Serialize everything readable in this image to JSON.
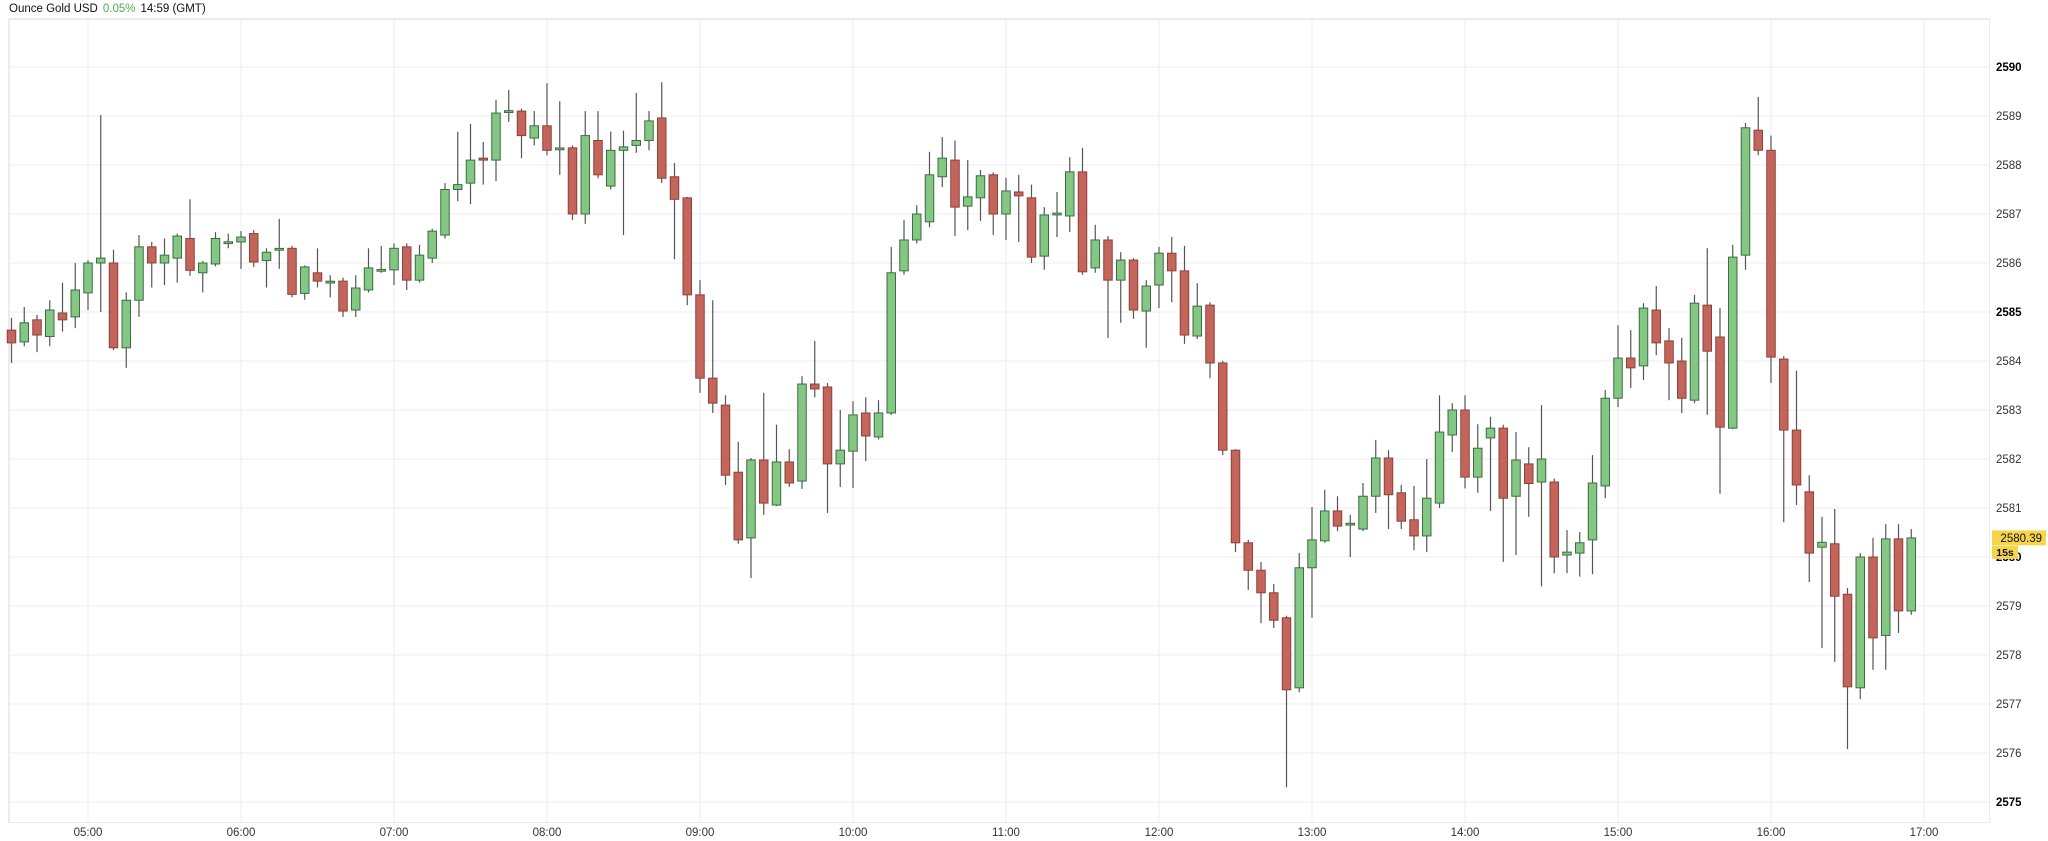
{
  "header": {
    "instrument": "Ounce Gold USD",
    "change_percent": "0.05%",
    "quote_time": "14:59 (GMT)"
  },
  "price_axis": {
    "min": 2575,
    "max": 2590,
    "step": 1,
    "bold_labels": [
      2575,
      2580,
      2585,
      2590
    ],
    "last_price_label": "2580.39",
    "countdown_label": "15s"
  },
  "time_axis": {
    "labels": [
      "05:00",
      "06:00",
      "07:00",
      "08:00",
      "09:00",
      "10:00",
      "11:00",
      "12:00",
      "13:00",
      "14:00",
      "15:00",
      "16:00",
      "17:00"
    ]
  },
  "colors": {
    "up_fill": "#84c784",
    "up_stroke": "#3c6e3f",
    "down_fill": "#c4655c",
    "down_stroke": "#8d4138",
    "wick": "#555555",
    "grid": "#ededed",
    "border": "#d9d9d9",
    "tick_text": "#333333",
    "tick_text_bold": "#000000",
    "pct_text": "#4caf50",
    "tag_bg": "#f6d54a",
    "tag_text": "#111111"
  },
  "chart_data": {
    "type": "candlestick",
    "interval": "5m",
    "title": "Ounce Gold USD",
    "ylim": [
      2575,
      2590
    ],
    "grid": true,
    "columns": [
      "time",
      "open",
      "high",
      "low",
      "close"
    ],
    "candles": [
      [
        "04:30",
        2584.63,
        2584.88,
        2583.96,
        2584.37
      ],
      [
        "04:35",
        2584.39,
        2585.1,
        2584.3,
        2584.78
      ],
      [
        "04:40",
        2584.84,
        2584.94,
        2584.18,
        2584.53
      ],
      [
        "04:45",
        2584.5,
        2585.24,
        2584.3,
        2585.04
      ],
      [
        "04:50",
        2584.98,
        2585.6,
        2584.6,
        2584.84
      ],
      [
        "04:55",
        2584.9,
        2586.0,
        2584.67,
        2585.45
      ],
      [
        "05:00",
        2585.39,
        2586.06,
        2585.04,
        2586.0
      ],
      [
        "05:05",
        2586.0,
        2589.02,
        2585.0,
        2586.1
      ],
      [
        "05:10",
        2586.0,
        2586.27,
        2584.22,
        2584.27
      ],
      [
        "05:15",
        2584.27,
        2585.4,
        2583.86,
        2585.24
      ],
      [
        "05:20",
        2585.24,
        2586.57,
        2584.9,
        2586.33
      ],
      [
        "05:25",
        2586.33,
        2586.43,
        2585.5,
        2586.0
      ],
      [
        "05:30",
        2586.0,
        2586.5,
        2585.55,
        2586.16
      ],
      [
        "05:35",
        2586.1,
        2586.6,
        2585.6,
        2586.55
      ],
      [
        "05:40",
        2586.5,
        2587.3,
        2585.74,
        2585.85
      ],
      [
        "05:45",
        2585.8,
        2586.04,
        2585.4,
        2586.0
      ],
      [
        "05:50",
        2585.98,
        2586.63,
        2585.93,
        2586.5
      ],
      [
        "05:55",
        2586.4,
        2586.6,
        2586.3,
        2586.43
      ],
      [
        "06:00",
        2586.43,
        2586.65,
        2585.88,
        2586.53
      ],
      [
        "06:05",
        2586.6,
        2586.67,
        2585.92,
        2586.02
      ],
      [
        "06:10",
        2586.05,
        2586.3,
        2585.5,
        2586.22
      ],
      [
        "06:15",
        2586.28,
        2586.9,
        2585.88,
        2586.28
      ],
      [
        "06:20",
        2586.3,
        2586.35,
        2585.3,
        2585.36
      ],
      [
        "06:25",
        2585.38,
        2585.95,
        2585.25,
        2585.92
      ],
      [
        "06:30",
        2585.8,
        2586.3,
        2585.5,
        2585.63
      ],
      [
        "06:35",
        2585.6,
        2585.75,
        2585.3,
        2585.62
      ],
      [
        "06:40",
        2585.63,
        2585.7,
        2584.9,
        2585.02
      ],
      [
        "06:45",
        2585.04,
        2585.75,
        2584.9,
        2585.49
      ],
      [
        "06:50",
        2585.45,
        2586.3,
        2585.4,
        2585.9
      ],
      [
        "06:55",
        2585.84,
        2586.35,
        2585.8,
        2585.86
      ],
      [
        "07:00",
        2585.86,
        2586.4,
        2585.55,
        2586.3
      ],
      [
        "07:05",
        2586.33,
        2586.4,
        2585.45,
        2585.65
      ],
      [
        "07:10",
        2585.65,
        2586.37,
        2585.6,
        2586.16
      ],
      [
        "07:15",
        2586.1,
        2586.7,
        2586.0,
        2586.65
      ],
      [
        "07:20",
        2586.57,
        2587.63,
        2586.5,
        2587.5
      ],
      [
        "07:25",
        2587.5,
        2588.68,
        2587.26,
        2587.6
      ],
      [
        "07:30",
        2587.63,
        2588.84,
        2587.2,
        2588.1
      ],
      [
        "07:35",
        2588.14,
        2588.47,
        2587.6,
        2588.1
      ],
      [
        "07:40",
        2588.1,
        2589.33,
        2587.67,
        2589.06
      ],
      [
        "07:45",
        2589.08,
        2589.53,
        2588.88,
        2589.1
      ],
      [
        "07:50",
        2589.1,
        2589.15,
        2588.14,
        2588.6
      ],
      [
        "07:55",
        2588.55,
        2589.1,
        2588.4,
        2588.8
      ],
      [
        "08:00",
        2588.8,
        2589.67,
        2588.2,
        2588.3
      ],
      [
        "08:05",
        2588.33,
        2589.3,
        2587.8,
        2588.33
      ],
      [
        "08:10",
        2588.35,
        2588.4,
        2586.88,
        2587.0
      ],
      [
        "08:15",
        2587.0,
        2589.1,
        2586.8,
        2588.6
      ],
      [
        "08:20",
        2588.5,
        2589.1,
        2587.73,
        2587.8
      ],
      [
        "08:25",
        2587.57,
        2588.68,
        2587.5,
        2588.3
      ],
      [
        "08:30",
        2588.3,
        2588.7,
        2586.57,
        2588.37
      ],
      [
        "08:35",
        2588.4,
        2589.47,
        2588.25,
        2588.5
      ],
      [
        "08:40",
        2588.5,
        2589.1,
        2588.3,
        2588.9
      ],
      [
        "08:45",
        2588.96,
        2589.69,
        2587.63,
        2587.73
      ],
      [
        "08:50",
        2587.76,
        2588.04,
        2586.08,
        2587.3
      ],
      [
        "08:55",
        2587.33,
        2587.35,
        2585.14,
        2585.35
      ],
      [
        "09:00",
        2585.35,
        2585.65,
        2583.35,
        2583.65
      ],
      [
        "09:05",
        2583.65,
        2585.24,
        2582.94,
        2583.14
      ],
      [
        "09:10",
        2583.1,
        2583.3,
        2581.47,
        2581.67
      ],
      [
        "09:15",
        2581.73,
        2582.35,
        2580.27,
        2580.35
      ],
      [
        "09:20",
        2580.39,
        2582.02,
        2579.57,
        2581.98
      ],
      [
        "09:25",
        2581.98,
        2583.35,
        2580.86,
        2581.1
      ],
      [
        "09:30",
        2581.06,
        2582.7,
        2581.04,
        2581.94
      ],
      [
        "09:35",
        2581.94,
        2582.2,
        2581.43,
        2581.51
      ],
      [
        "09:40",
        2581.55,
        2583.69,
        2581.39,
        2583.53
      ],
      [
        "09:45",
        2583.53,
        2584.41,
        2583.26,
        2583.43
      ],
      [
        "09:50",
        2583.47,
        2583.55,
        2580.9,
        2581.9
      ],
      [
        "09:55",
        2581.9,
        2583.0,
        2581.43,
        2582.18
      ],
      [
        "10:00",
        2582.16,
        2583.18,
        2581.41,
        2582.9
      ],
      [
        "10:05",
        2582.94,
        2583.26,
        2581.96,
        2582.47
      ],
      [
        "10:10",
        2582.45,
        2583.2,
        2582.4,
        2582.94
      ],
      [
        "10:15",
        2582.94,
        2586.33,
        2582.9,
        2585.8
      ],
      [
        "10:20",
        2585.84,
        2586.88,
        2585.76,
        2586.47
      ],
      [
        "10:25",
        2586.47,
        2587.18,
        2586.4,
        2587.0
      ],
      [
        "10:30",
        2586.84,
        2588.27,
        2586.73,
        2587.8
      ],
      [
        "10:35",
        2587.76,
        2588.57,
        2587.55,
        2588.14
      ],
      [
        "10:40",
        2588.1,
        2588.5,
        2586.55,
        2587.14
      ],
      [
        "10:45",
        2587.16,
        2588.1,
        2586.67,
        2587.35
      ],
      [
        "10:50",
        2587.33,
        2587.9,
        2586.86,
        2587.78
      ],
      [
        "10:55",
        2587.8,
        2587.85,
        2586.57,
        2587.0
      ],
      [
        "11:00",
        2587.0,
        2587.74,
        2586.47,
        2587.47
      ],
      [
        "11:05",
        2587.45,
        2587.8,
        2586.43,
        2587.37
      ],
      [
        "11:10",
        2587.33,
        2587.6,
        2586.0,
        2586.12
      ],
      [
        "11:15",
        2586.14,
        2587.14,
        2585.86,
        2586.98
      ],
      [
        "11:20",
        2587.0,
        2587.45,
        2586.53,
        2587.0
      ],
      [
        "11:25",
        2586.96,
        2588.16,
        2586.63,
        2587.86
      ],
      [
        "11:30",
        2587.86,
        2588.35,
        2585.76,
        2585.82
      ],
      [
        "11:35",
        2585.9,
        2586.78,
        2585.8,
        2586.47
      ],
      [
        "11:40",
        2586.47,
        2586.55,
        2584.47,
        2585.65
      ],
      [
        "11:45",
        2585.65,
        2586.22,
        2584.78,
        2586.06
      ],
      [
        "11:50",
        2586.06,
        2586.1,
        2584.86,
        2585.04
      ],
      [
        "11:55",
        2585.02,
        2585.65,
        2584.27,
        2585.53
      ],
      [
        "12:00",
        2585.55,
        2586.33,
        2585.08,
        2586.2
      ],
      [
        "12:05",
        2586.2,
        2586.53,
        2585.2,
        2585.84
      ],
      [
        "12:10",
        2585.84,
        2586.35,
        2584.35,
        2584.53
      ],
      [
        "12:15",
        2584.51,
        2585.59,
        2584.45,
        2585.12
      ],
      [
        "12:20",
        2585.14,
        2585.2,
        2583.65,
        2583.96
      ],
      [
        "12:25",
        2583.96,
        2584.0,
        2582.08,
        2582.18
      ],
      [
        "12:30",
        2582.18,
        2582.2,
        2580.1,
        2580.29
      ],
      [
        "12:35",
        2580.29,
        2580.35,
        2579.33,
        2579.73
      ],
      [
        "12:40",
        2579.73,
        2579.9,
        2578.65,
        2579.27
      ],
      [
        "12:45",
        2579.27,
        2579.45,
        2578.55,
        2578.71
      ],
      [
        "12:50",
        2578.76,
        2578.8,
        2575.3,
        2577.29
      ],
      [
        "12:55",
        2577.33,
        2580.08,
        2577.24,
        2579.78
      ],
      [
        "13:00",
        2579.78,
        2581.02,
        2578.76,
        2580.35
      ],
      [
        "13:05",
        2580.33,
        2581.37,
        2580.29,
        2580.94
      ],
      [
        "13:10",
        2580.94,
        2581.24,
        2580.53,
        2580.63
      ],
      [
        "13:15",
        2580.67,
        2580.86,
        2580.0,
        2580.67
      ],
      [
        "13:20",
        2580.57,
        2581.51,
        2580.53,
        2581.24
      ],
      [
        "13:25",
        2581.24,
        2582.39,
        2580.9,
        2582.02
      ],
      [
        "13:30",
        2582.02,
        2582.18,
        2580.57,
        2581.27
      ],
      [
        "13:35",
        2581.31,
        2581.47,
        2580.57,
        2580.73
      ],
      [
        "13:40",
        2580.76,
        2581.45,
        2580.14,
        2580.43
      ],
      [
        "13:45",
        2580.43,
        2582.0,
        2580.1,
        2581.2
      ],
      [
        "13:50",
        2581.1,
        2583.3,
        2581.0,
        2582.55
      ],
      [
        "13:55",
        2582.49,
        2583.14,
        2582.14,
        2583.0
      ],
      [
        "14:00",
        2583.0,
        2583.3,
        2581.4,
        2581.63
      ],
      [
        "14:05",
        2581.63,
        2582.71,
        2581.31,
        2582.22
      ],
      [
        "14:10",
        2582.43,
        2582.86,
        2580.94,
        2582.63
      ],
      [
        "14:15",
        2582.63,
        2582.7,
        2579.9,
        2581.2
      ],
      [
        "14:20",
        2581.24,
        2582.55,
        2580.04,
        2581.98
      ],
      [
        "14:25",
        2581.9,
        2582.24,
        2580.82,
        2581.5
      ],
      [
        "14:30",
        2581.53,
        2583.1,
        2579.4,
        2582.0
      ],
      [
        "14:35",
        2581.53,
        2581.6,
        2579.67,
        2580.0
      ],
      [
        "14:40",
        2580.04,
        2580.55,
        2579.67,
        2580.1
      ],
      [
        "14:45",
        2580.08,
        2580.51,
        2579.6,
        2580.29
      ],
      [
        "14:50",
        2580.35,
        2582.08,
        2579.65,
        2581.51
      ],
      [
        "14:55",
        2581.45,
        2583.41,
        2581.2,
        2583.24
      ],
      [
        "15:00",
        2583.24,
        2584.73,
        2583.06,
        2584.06
      ],
      [
        "15:05",
        2584.06,
        2584.63,
        2583.45,
        2583.86
      ],
      [
        "15:10",
        2583.9,
        2585.18,
        2583.61,
        2585.08
      ],
      [
        "15:15",
        2585.04,
        2585.53,
        2584.12,
        2584.37
      ],
      [
        "15:20",
        2584.41,
        2584.67,
        2583.2,
        2583.96
      ],
      [
        "15:25",
        2584.0,
        2584.47,
        2582.94,
        2583.24
      ],
      [
        "15:30",
        2583.2,
        2585.35,
        2583.14,
        2585.18
      ],
      [
        "15:35",
        2585.14,
        2586.3,
        2582.9,
        2584.2
      ],
      [
        "15:40",
        2584.49,
        2585.08,
        2581.29,
        2582.65
      ],
      [
        "15:45",
        2582.63,
        2586.37,
        2582.61,
        2586.12
      ],
      [
        "15:50",
        2586.16,
        2588.86,
        2585.86,
        2588.76
      ],
      [
        "15:55",
        2588.71,
        2589.39,
        2588.2,
        2588.3
      ],
      [
        "16:00",
        2588.3,
        2588.6,
        2583.55,
        2584.08
      ],
      [
        "16:05",
        2584.04,
        2584.1,
        2580.71,
        2582.59
      ],
      [
        "16:10",
        2582.59,
        2583.8,
        2581.06,
        2581.47
      ],
      [
        "16:15",
        2581.33,
        2581.67,
        2579.49,
        2580.08
      ],
      [
        "16:20",
        2580.2,
        2580.82,
        2578.14,
        2580.3
      ],
      [
        "16:25",
        2580.27,
        2580.98,
        2577.86,
        2579.2
      ],
      [
        "16:30",
        2579.24,
        2579.37,
        2576.08,
        2577.35
      ],
      [
        "16:35",
        2577.33,
        2580.08,
        2577.1,
        2580.0
      ],
      [
        "16:40",
        2580.0,
        2580.39,
        2577.7,
        2578.35
      ],
      [
        "16:45",
        2578.4,
        2580.67,
        2577.7,
        2580.37
      ],
      [
        "16:50",
        2580.37,
        2580.67,
        2578.45,
        2578.9
      ],
      [
        "16:55",
        2578.9,
        2580.57,
        2578.82,
        2580.39
      ]
    ]
  }
}
